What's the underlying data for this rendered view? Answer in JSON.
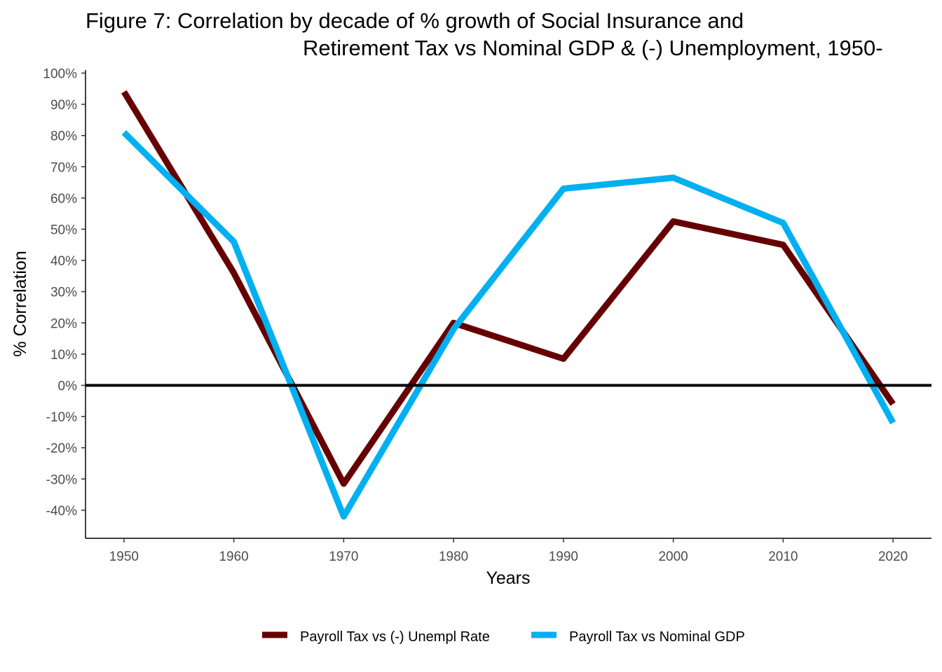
{
  "chart_data": {
    "type": "line",
    "title_lines": [
      "Figure 7: Correlation by decade of % growth of Social Insurance and",
      "Retirement Tax vs Nominal GDP & (-) Unemployment, 1950-"
    ],
    "xlabel": "Years",
    "ylabel": "% Correlation",
    "x": [
      1950,
      1960,
      1970,
      1980,
      1990,
      2000,
      2010,
      2020
    ],
    "x_tick_labels": [
      "1950",
      "1960",
      "1970",
      "1980",
      "1990",
      "2000",
      "2010",
      "2020"
    ],
    "xlim": [
      1946.5,
      2023.5
    ],
    "y_ticks": [
      -40,
      -30,
      -20,
      -10,
      0,
      10,
      20,
      30,
      40,
      50,
      60,
      70,
      80,
      90,
      100
    ],
    "y_tick_labels": [
      "-40%",
      "-30%",
      "-20%",
      "-10%",
      "0%",
      "10%",
      "20%",
      "30%",
      "40%",
      "50%",
      "60%",
      "70%",
      "80%",
      "90%",
      "100%"
    ],
    "ylim": [
      -49,
      101
    ],
    "reference_line_y": 0,
    "grid": false,
    "legend_position": "bottom",
    "series": [
      {
        "name": "Payroll Tax vs (-) Unempl Rate",
        "color": "#660000",
        "values": [
          94,
          36,
          -31.5,
          20,
          8.5,
          52.5,
          45,
          -6
        ]
      },
      {
        "name": "Payroll Tax vs Nominal GDP",
        "color": "#00b0f0",
        "values": [
          81,
          46,
          -42,
          18,
          63,
          66.5,
          52,
          -12
        ]
      }
    ]
  }
}
